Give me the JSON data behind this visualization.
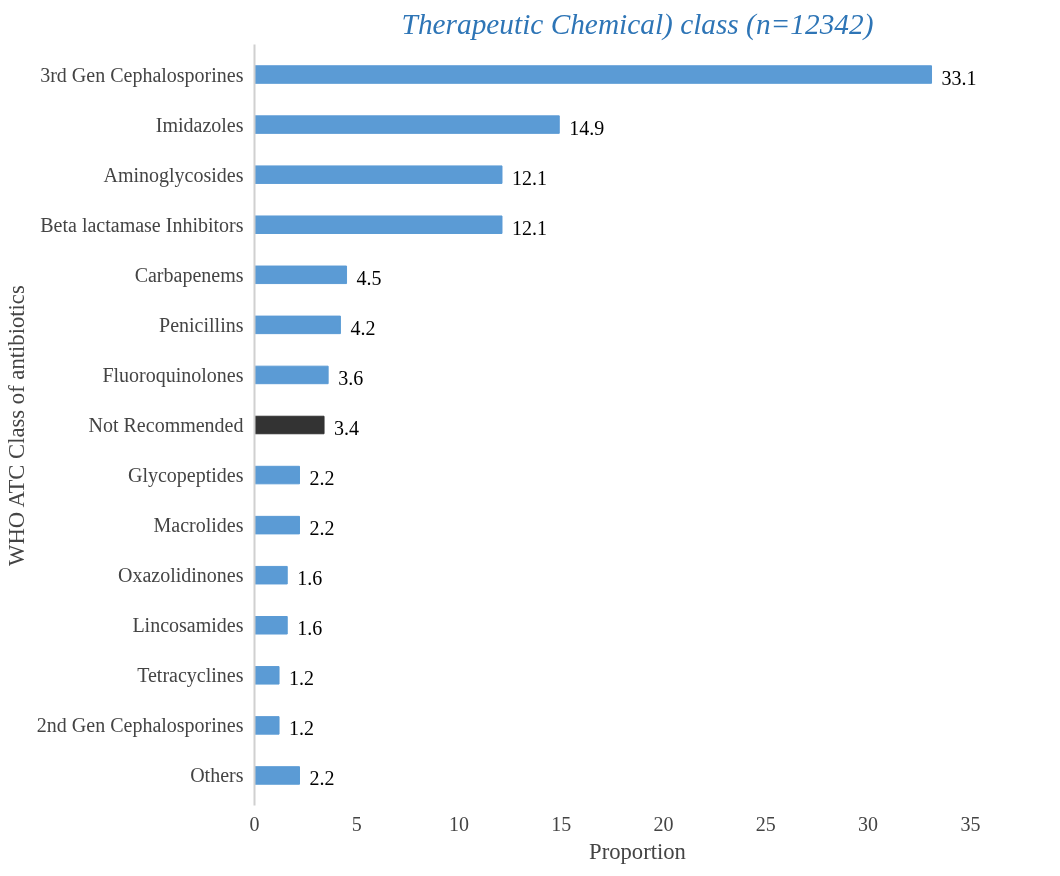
{
  "chart_data": {
    "type": "bar",
    "orientation": "horizontal",
    "title": "Therapeutic Chemical) class (n=12342)",
    "xlabel": "Proportion",
    "ylabel": "WHO ATC Class of antibiotics",
    "categories": [
      "3rd Gen Cephalosporines",
      "Imidazoles",
      "Aminoglycosides",
      "Beta lactamase Inhibitors",
      "Carbapenems",
      "Penicillins",
      "Fluoroquinolones",
      "Not Recommended",
      "Glycopeptides",
      "Macrolides",
      "Oxazolidinones",
      "Lincosamides",
      "Tetracyclines",
      "2nd Gen Cephalosporines",
      "Others"
    ],
    "values": [
      33.1,
      14.9,
      12.1,
      12.1,
      4.5,
      4.2,
      3.6,
      3.4,
      2.2,
      2.2,
      1.6,
      1.6,
      1.2,
      1.2,
      2.2
    ],
    "colors": [
      "#5b9bd5",
      "#5b9bd5",
      "#5b9bd5",
      "#5b9bd5",
      "#5b9bd5",
      "#5b9bd5",
      "#5b9bd5",
      "#333333",
      "#5b9bd5",
      "#5b9bd5",
      "#5b9bd5",
      "#5b9bd5",
      "#5b9bd5",
      "#5b9bd5",
      "#5b9bd5"
    ],
    "xlim": [
      0,
      35
    ],
    "xticks": [
      0,
      5,
      10,
      15,
      20,
      25,
      30,
      35
    ],
    "data_labels": true,
    "grid": false
  }
}
